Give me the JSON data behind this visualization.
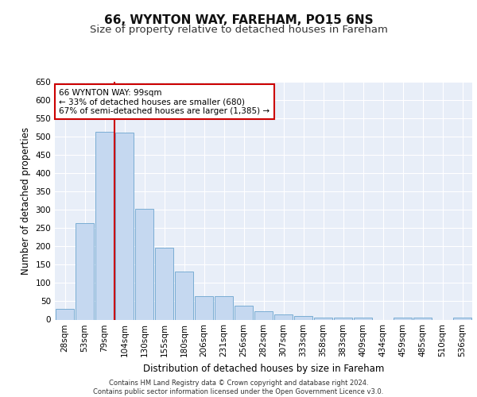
{
  "title": "66, WYNTON WAY, FAREHAM, PO15 6NS",
  "subtitle": "Size of property relative to detached houses in Fareham",
  "xlabel": "Distribution of detached houses by size in Fareham",
  "ylabel": "Number of detached properties",
  "categories": [
    "28sqm",
    "53sqm",
    "79sqm",
    "104sqm",
    "130sqm",
    "155sqm",
    "180sqm",
    "206sqm",
    "231sqm",
    "256sqm",
    "282sqm",
    "307sqm",
    "333sqm",
    "358sqm",
    "383sqm",
    "409sqm",
    "434sqm",
    "459sqm",
    "485sqm",
    "510sqm",
    "536sqm"
  ],
  "values": [
    30,
    263,
    513,
    510,
    302,
    196,
    132,
    65,
    65,
    37,
    22,
    15,
    9,
    6,
    5,
    5,
    0,
    5,
    5,
    0,
    5
  ],
  "bar_color": "#c5d8f0",
  "bar_edge_color": "#7aadd4",
  "property_line_index": 3,
  "property_line_color": "#cc0000",
  "annotation_text": "66 WYNTON WAY: 99sqm\n← 33% of detached houses are smaller (680)\n67% of semi-detached houses are larger (1,385) →",
  "annotation_box_color": "#cc0000",
  "ylim": [
    0,
    650
  ],
  "yticks": [
    0,
    50,
    100,
    150,
    200,
    250,
    300,
    350,
    400,
    450,
    500,
    550,
    600,
    650
  ],
  "background_color": "#e8eef8",
  "footer_text": "Contains HM Land Registry data © Crown copyright and database right 2024.\nContains public sector information licensed under the Open Government Licence v3.0.",
  "grid_color": "#ffffff",
  "title_fontsize": 11,
  "subtitle_fontsize": 9.5,
  "axis_label_fontsize": 8.5,
  "tick_fontsize": 7.5,
  "annotation_fontsize": 7.5
}
